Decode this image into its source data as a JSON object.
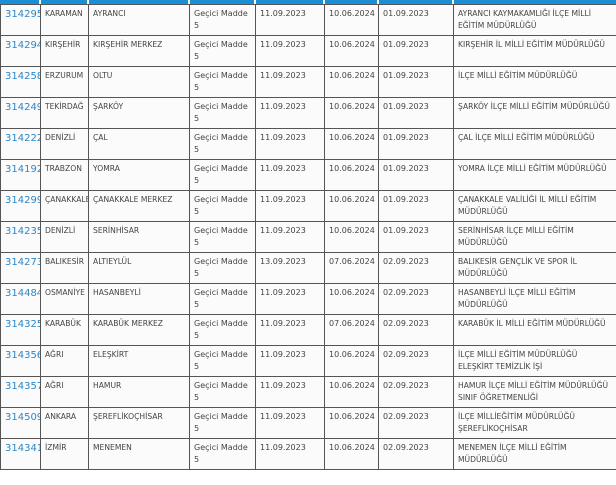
{
  "accent_color": "#1a8fd6",
  "link_color": "#2b87c9",
  "rows": [
    {
      "id": "314295",
      "il": "KARAMAN",
      "ilce": "AYRANCI",
      "madde": "Geçici Madde 5",
      "d1": "11.09.2023",
      "d2": "10.06.2024",
      "d3": "01.09.2023",
      "kurum": "AYRANCI KAYMAKAMLIĞI İLÇE MİLLİ EĞİTİM MÜDÜRLÜĞÜ"
    },
    {
      "id": "314294",
      "il": "KIRŞEHİR",
      "ilce": "KIRŞEHİR MERKEZ",
      "madde": "Geçici Madde 5",
      "d1": "11.09.2023",
      "d2": "10.06.2024",
      "d3": "01.09.2023",
      "kurum": "KIRŞEHİR İL MİLLİ EĞİTİM MÜDÜRLÜĞÜ"
    },
    {
      "id": "314258",
      "il": "ERZURUM",
      "ilce": "OLTU",
      "madde": "Geçici Madde 5",
      "d1": "11.09.2023",
      "d2": "10.06.2024",
      "d3": "01.09.2023",
      "kurum": "İLÇE MİLLİ EĞİTİM MÜDÜRLÜĞÜ"
    },
    {
      "id": "314249",
      "il": "TEKİRDAĞ",
      "ilce": "ŞARKÖY",
      "madde": "Geçici Madde 5",
      "d1": "11.09.2023",
      "d2": "10.06.2024",
      "d3": "01.09.2023",
      "kurum": "ŞARKÖY İLÇE MİLLİ EĞİTİM MÜDÜRLÜĞÜ"
    },
    {
      "id": "314222",
      "il": "DENİZLİ",
      "ilce": "ÇAL",
      "madde": "Geçici Madde 5",
      "d1": "11.09.2023",
      "d2": "10.06.2024",
      "d3": "01.09.2023",
      "kurum": "ÇAL İLÇE MİLLİ EĞİTİM MÜDÜRLÜĞÜ"
    },
    {
      "id": "314192",
      "il": "TRABZON",
      "ilce": "YOMRA",
      "madde": "Geçici Madde 5",
      "d1": "11.09.2023",
      "d2": "10.06.2024",
      "d3": "01.09.2023",
      "kurum": "YOMRA İLÇE MİLLİ EĞİTİM MÜDÜRLÜĞÜ"
    },
    {
      "id": "314299",
      "il": "ÇANAKKALE",
      "ilce": "ÇANAKKALE MERKEZ",
      "madde": "Geçici Madde 5",
      "d1": "11.09.2023",
      "d2": "10.06.2024",
      "d3": "01.09.2023",
      "kurum": "ÇANAKKALE VALİLİĞİ İL MİLLİ EĞİTİM MÜDÜRLÜĞÜ"
    },
    {
      "id": "314235",
      "il": "DENİZLİ",
      "ilce": "SERİNHİSAR",
      "madde": "Geçici Madde 5",
      "d1": "11.09.2023",
      "d2": "10.06.2024",
      "d3": "01.09.2023",
      "kurum": "SERİNHİSAR İLÇE MİLLİ EĞİTİM MÜDÜRLÜĞÜ"
    },
    {
      "id": "314273",
      "il": "BALIKESİR",
      "ilce": "ALTIEYLÜL",
      "madde": "Geçici Madde 5",
      "d1": "13.09.2023",
      "d2": "07.06.2024",
      "d3": "02.09.2023",
      "kurum": "BALIKESİR GENÇLİK VE SPOR İL MÜDÜRLÜĞÜ"
    },
    {
      "id": "314484",
      "il": "OSMANİYE",
      "ilce": "HASANBEYLİ",
      "madde": "Geçici Madde 5",
      "d1": "11.09.2023",
      "d2": "10.06.2024",
      "d3": "02.09.2023",
      "kurum": "HASANBEYLİ İLÇE MİLLİ EĞİTİM MÜDÜRLÜĞÜ"
    },
    {
      "id": "314325",
      "il": "KARABÜK",
      "ilce": "KARABÜK MERKEZ",
      "madde": "Geçici Madde 5",
      "d1": "11.09.2023",
      "d2": "07.06.2024",
      "d3": "02.09.2023",
      "kurum": "KARABÜK İL MİLLİ EĞİTİM MÜDÜRLÜĞÜ"
    },
    {
      "id": "314356",
      "il": "AĞRI",
      "ilce": "ELEŞKİRT",
      "madde": "Geçici Madde 5",
      "d1": "11.09.2023",
      "d2": "10.06.2024",
      "d3": "02.09.2023",
      "kurum": "İLÇE MİLLİ EĞİTİM MÜDÜRLÜĞÜ ELEŞKİRT TEMİZLİK İŞİ"
    },
    {
      "id": "314357",
      "il": "AĞRI",
      "ilce": "HAMUR",
      "madde": "Geçici Madde 5",
      "d1": "11.09.2023",
      "d2": "10.06.2024",
      "d3": "02.09.2023",
      "kurum": "HAMUR İLÇE MİLLİ EĞİTİM MÜDÜRLÜĞÜ SINIF ÖĞRETMENLİĞİ"
    },
    {
      "id": "314509",
      "il": "ANKARA",
      "ilce": "ŞEREFLİKOÇHİSAR",
      "madde": "Geçici Madde 5",
      "d1": "11.09.2023",
      "d2": "10.06.2024",
      "d3": "02.09.2023",
      "kurum": "İLÇE MİLLİEĞİTİM MÜDÜRLÜĞÜ ŞEREFLİKOÇHİSAR"
    },
    {
      "id": "314341",
      "il": "İZMİR",
      "ilce": "MENEMEN",
      "madde": "Geçici Madde 5",
      "d1": "11.09.2023",
      "d2": "10.06.2024",
      "d3": "02.09.2023",
      "kurum": "MENEMEN İLÇE MİLLİ EĞİTİM MÜDÜRLÜĞÜ"
    }
  ]
}
